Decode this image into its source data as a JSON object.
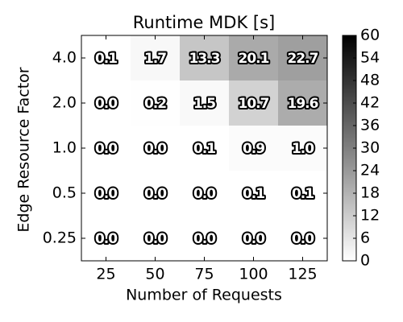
{
  "chart_data": {
    "type": "heatmap",
    "title": "Runtime MDK [s]",
    "xlabel": "Number of Requests",
    "ylabel": "Edge Resource Factor",
    "categories": [
      "25",
      "50",
      "75",
      "100",
      "125"
    ],
    "y_categories": [
      "4.0",
      "2.0",
      "1.0",
      "0.5",
      "0.25"
    ],
    "values": [
      [
        0.1,
        1.7,
        13.3,
        20.1,
        22.7
      ],
      [
        0.0,
        0.2,
        1.5,
        10.7,
        19.6
      ],
      [
        0.0,
        0.0,
        0.1,
        0.9,
        1.0
      ],
      [
        0.0,
        0.0,
        0.0,
        0.1,
        0.1
      ],
      [
        0.0,
        0.0,
        0.0,
        0.0,
        0.0
      ]
    ],
    "value_labels": [
      [
        "0.1",
        "1.7",
        "13.3",
        "20.1",
        "22.7"
      ],
      [
        "0.0",
        "0.2",
        "1.5",
        "10.7",
        "19.6"
      ],
      [
        "0.0",
        "0.0",
        "0.1",
        "0.9",
        "1.0"
      ],
      [
        "0.0",
        "0.0",
        "0.0",
        "0.1",
        "0.1"
      ],
      [
        "0.0",
        "0.0",
        "0.0",
        "0.0",
        "0.0"
      ]
    ],
    "zlim": [
      0,
      60
    ],
    "zticks": [
      0,
      6,
      12,
      18,
      24,
      30,
      36,
      42,
      48,
      54,
      60
    ],
    "colormap": [
      "#ffffff",
      "#000000"
    ]
  }
}
